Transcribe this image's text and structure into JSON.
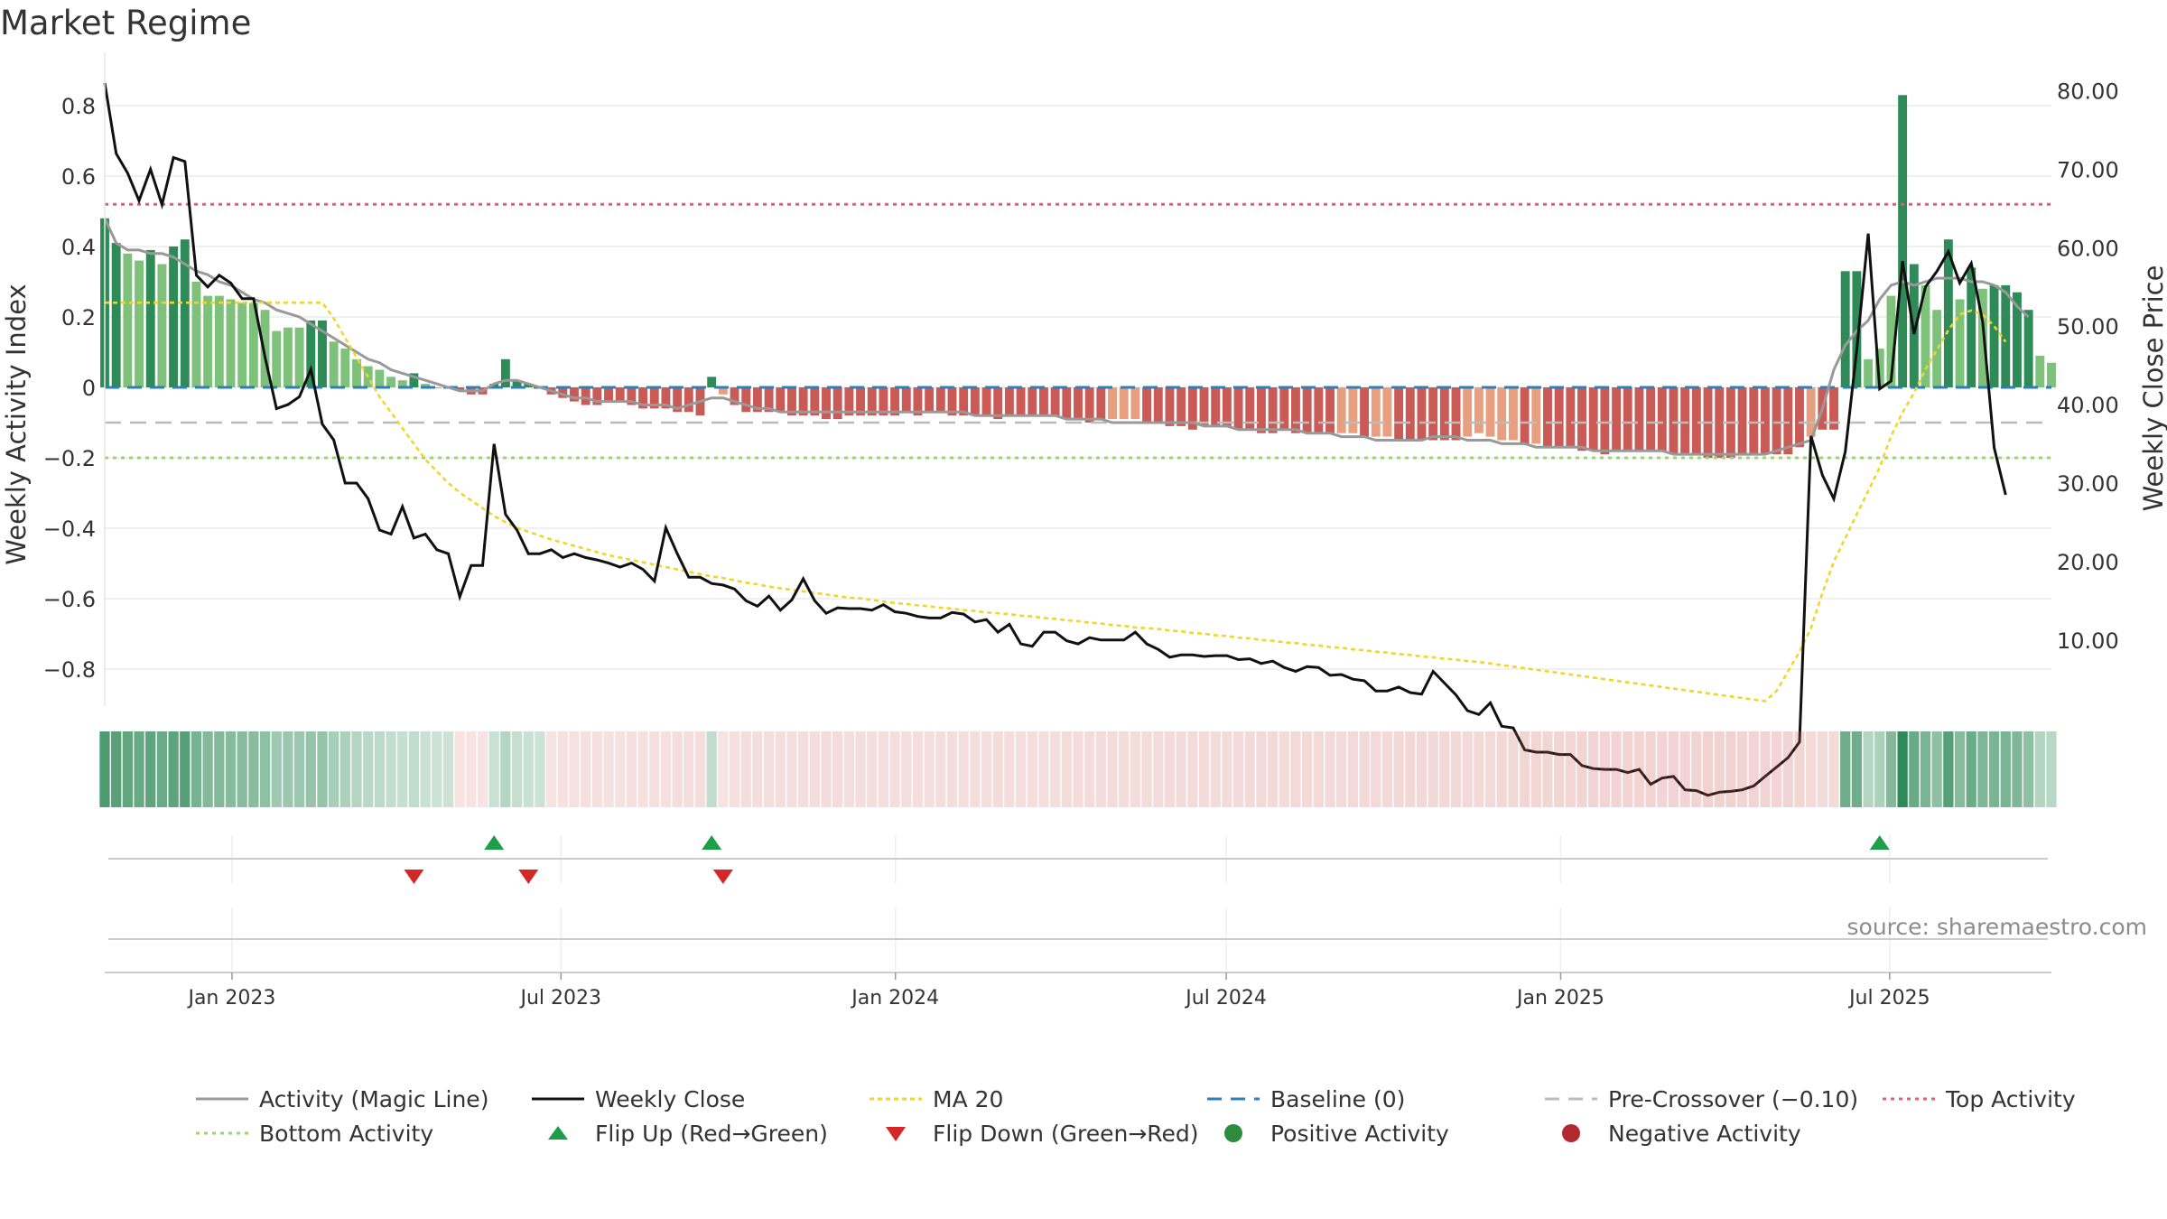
{
  "title": "Market Regime",
  "source": "source: sharemaestro.com",
  "colors": {
    "strong_green": "#2e8a57",
    "light_green": "#7dc17a",
    "strong_red": "#c95a55",
    "light_red": "#e79f80",
    "magic_line": "#999999",
    "close": "#111111",
    "ma20": "#f2d52a",
    "baseline": "#2c7fb8",
    "pre_crossover": "#bbbbbb",
    "top_activity": "#e06070",
    "bottom_activity": "#9ed46e",
    "flip_up": "#1f9e4a",
    "flip_down": "#d62728"
  },
  "legend": [
    {
      "label": "Activity (Magic Line)",
      "icon": "gray-solid-line"
    },
    {
      "label": "Weekly Close",
      "icon": "black-solid-line"
    },
    {
      "label": "MA 20",
      "icon": "yellow-dotted-line"
    },
    {
      "label": "Baseline (0)",
      "icon": "blue-dashed-line"
    },
    {
      "label": "Pre-Crossover (−0.10)",
      "icon": "gray-dashed-line"
    },
    {
      "label": "Top Activity",
      "icon": "red-dotted-line"
    },
    {
      "label": "Bottom Activity",
      "icon": "green-dotted-line"
    },
    {
      "label": "Flip Up (Red→Green)",
      "icon": "green-triangle-up"
    },
    {
      "label": "Flip Down (Green→Red)",
      "icon": "red-triangle-down"
    },
    {
      "label": "Positive Activity",
      "icon": "green-dot"
    },
    {
      "label": "Negative Activity",
      "icon": "red-dot"
    }
  ],
  "chart_data": {
    "type": "bar",
    "y_left_label": "Weekly Activity Index",
    "y_right_label": "Weekly Close Price",
    "y_left_ticks": [
      "0.8",
      "0.6",
      "0.4",
      "0.2",
      "0",
      "−0.2",
      "−0.4",
      "−0.6",
      "−0.8"
    ],
    "y_left_tick_values": [
      0.8,
      0.6,
      0.4,
      0.2,
      0,
      -0.2,
      -0.4,
      -0.6,
      -0.8
    ],
    "y_right_ticks": [
      "80.00",
      "70.00",
      "60.00",
      "50.00",
      "40.00",
      "30.00",
      "20.00",
      "10.00"
    ],
    "y_right_tick_values": [
      80,
      70,
      60,
      50,
      40,
      30,
      20,
      10
    ],
    "x_ticks": [
      "Jan 2023",
      "Jul 2023",
      "Jan 2024",
      "Jul 2024",
      "Jan 2025",
      "Jul 2025"
    ],
    "x_tick_dates": [
      "2023-01-01",
      "2023-07-01",
      "2024-01-01",
      "2024-07-01",
      "2025-01-01",
      "2025-07-01"
    ],
    "x_start": "2022-10-23",
    "x_end": "2025-09-28",
    "ylim_left": [
      -0.9,
      0.9
    ],
    "ylim_right": [
      1.8,
      82.6
    ],
    "reference_lines": {
      "top_activity": 0.52,
      "bottom_activity": -0.2,
      "pre_crossover": -0.1,
      "baseline": 0
    },
    "weekly_activity": [
      0.48,
      0.41,
      0.38,
      0.36,
      0.39,
      0.35,
      0.4,
      0.42,
      0.3,
      0.26,
      0.26,
      0.25,
      0.24,
      0.24,
      0.22,
      0.16,
      0.17,
      0.17,
      0.19,
      0.19,
      0.13,
      0.11,
      0.08,
      0.06,
      0.05,
      0.03,
      0.02,
      0.04,
      0.01,
      0.0,
      0.0,
      -0.01,
      -0.02,
      -0.02,
      0.01,
      0.08,
      0.02,
      0.01,
      0.0,
      -0.02,
      -0.03,
      -0.04,
      -0.05,
      -0.05,
      -0.04,
      -0.04,
      -0.05,
      -0.06,
      -0.06,
      -0.06,
      -0.07,
      -0.07,
      -0.08,
      0.03,
      -0.02,
      -0.05,
      -0.07,
      -0.07,
      -0.07,
      -0.07,
      -0.08,
      -0.08,
      -0.08,
      -0.09,
      -0.09,
      -0.08,
      -0.08,
      -0.08,
      -0.08,
      -0.08,
      -0.07,
      -0.08,
      -0.07,
      -0.07,
      -0.08,
      -0.08,
      -0.08,
      -0.08,
      -0.09,
      -0.08,
      -0.08,
      -0.08,
      -0.08,
      -0.08,
      -0.09,
      -0.09,
      -0.1,
      -0.09,
      -0.09,
      -0.09,
      -0.09,
      -0.1,
      -0.1,
      -0.11,
      -0.11,
      -0.12,
      -0.11,
      -0.11,
      -0.11,
      -0.12,
      -0.12,
      -0.13,
      -0.13,
      -0.12,
      -0.13,
      -0.13,
      -0.13,
      -0.13,
      -0.13,
      -0.13,
      -0.14,
      -0.14,
      -0.14,
      -0.15,
      -0.15,
      -0.15,
      -0.15,
      -0.15,
      -0.15,
      -0.14,
      -0.13,
      -0.14,
      -0.15,
      -0.15,
      -0.16,
      -0.16,
      -0.17,
      -0.17,
      -0.17,
      -0.18,
      -0.18,
      -0.19,
      -0.18,
      -0.18,
      -0.18,
      -0.18,
      -0.18,
      -0.19,
      -0.19,
      -0.19,
      -0.2,
      -0.2,
      -0.2,
      -0.19,
      -0.19,
      -0.19,
      -0.19,
      -0.19,
      -0.17,
      -0.14,
      -0.12,
      -0.12,
      0.33,
      0.33,
      0.08,
      0.11,
      0.26,
      0.83,
      0.35,
      0.29,
      0.22,
      0.42,
      0.25,
      0.34,
      0.28,
      0.29,
      0.29,
      0.27,
      0.22,
      0.09,
      0.07
    ],
    "magic_line": [
      0.48,
      0.41,
      0.39,
      0.39,
      0.38,
      0.38,
      0.37,
      0.35,
      0.33,
      0.32,
      0.3,
      0.29,
      0.27,
      0.25,
      0.24,
      0.22,
      0.21,
      0.2,
      0.18,
      0.16,
      0.14,
      0.12,
      0.1,
      0.08,
      0.07,
      0.05,
      0.04,
      0.03,
      0.02,
      0.01,
      0.0,
      -0.01,
      -0.01,
      -0.01,
      0.01,
      0.02,
      0.02,
      0.01,
      0.0,
      -0.01,
      -0.02,
      -0.03,
      -0.03,
      -0.04,
      -0.04,
      -0.04,
      -0.04,
      -0.05,
      -0.05,
      -0.05,
      -0.06,
      -0.05,
      -0.04,
      -0.03,
      -0.03,
      -0.04,
      -0.05,
      -0.06,
      -0.06,
      -0.07,
      -0.07,
      -0.07,
      -0.07,
      -0.07,
      -0.07,
      -0.07,
      -0.07,
      -0.07,
      -0.07,
      -0.07,
      -0.07,
      -0.07,
      -0.07,
      -0.07,
      -0.07,
      -0.07,
      -0.08,
      -0.08,
      -0.08,
      -0.08,
      -0.08,
      -0.08,
      -0.08,
      -0.08,
      -0.09,
      -0.09,
      -0.09,
      -0.09,
      -0.1,
      -0.1,
      -0.1,
      -0.1,
      -0.1,
      -0.1,
      -0.1,
      -0.1,
      -0.11,
      -0.11,
      -0.11,
      -0.12,
      -0.12,
      -0.12,
      -0.12,
      -0.12,
      -0.12,
      -0.13,
      -0.13,
      -0.13,
      -0.14,
      -0.14,
      -0.14,
      -0.15,
      -0.15,
      -0.15,
      -0.15,
      -0.15,
      -0.14,
      -0.14,
      -0.14,
      -0.15,
      -0.15,
      -0.15,
      -0.16,
      -0.16,
      -0.16,
      -0.17,
      -0.17,
      -0.17,
      -0.17,
      -0.17,
      -0.18,
      -0.18,
      -0.18,
      -0.18,
      -0.18,
      -0.18,
      -0.18,
      -0.19,
      -0.19,
      -0.19,
      -0.19,
      -0.19,
      -0.19,
      -0.19,
      -0.19,
      -0.19,
      -0.18,
      -0.17,
      -0.16,
      -0.15,
      -0.06,
      0.05,
      0.12,
      0.16,
      0.19,
      0.25,
      0.29,
      0.3,
      0.29,
      0.3,
      0.31,
      0.31,
      0.31,
      0.3,
      0.3,
      0.29,
      0.27,
      0.23,
      0.2
    ],
    "weekly_close": [
      81.0,
      72.0,
      69.5,
      66.0,
      70.0,
      65.5,
      71.5,
      71.0,
      56.5,
      55.0,
      56.5,
      55.5,
      53.5,
      53.5,
      46.0,
      39.5,
      40.0,
      41.0,
      44.5,
      37.5,
      35.5,
      30.0,
      30.0,
      28.0,
      24.0,
      23.5,
      27.0,
      23.0,
      23.5,
      21.5,
      21.0,
      15.5,
      19.5,
      19.5,
      35.0,
      26.0,
      24.0,
      21.0,
      21.0,
      21.5,
      20.5,
      21.0,
      20.5,
      20.2,
      19.8,
      19.3,
      19.8,
      19.0,
      17.5,
      24.3,
      21.0,
      18.0,
      18.0,
      17.2,
      17.0,
      16.5,
      15.0,
      14.3,
      15.6,
      13.8,
      15.1,
      17.8,
      15.0,
      13.4,
      14.1,
      14.0,
      14.0,
      13.8,
      14.5,
      13.6,
      13.4,
      13.0,
      12.8,
      12.8,
      13.5,
      13.3,
      12.3,
      12.6,
      11.0,
      12.0,
      9.5,
      9.2,
      11.0,
      11.0,
      9.9,
      9.5,
      10.3,
      10.0,
      10.0,
      10.0,
      11.0,
      9.5,
      8.8,
      7.8,
      8.1,
      8.1,
      7.9,
      8.0,
      8.0,
      7.5,
      7.6,
      7.0,
      7.3,
      6.5,
      6.0,
      6.6,
      6.5,
      5.5,
      5.6,
      5.0,
      4.8,
      3.5,
      3.5,
      4.0,
      3.3,
      3.1,
      6.0,
      4.5,
      3.0,
      1.0,
      0.5,
      2.0,
      -1.0,
      -1.2,
      -4.0,
      -4.3,
      -4.3,
      -4.6,
      -4.6,
      -6.0,
      -6.4,
      -6.5,
      -6.5,
      -6.9,
      -6.5,
      -8.4,
      -7.6,
      -7.4,
      -9.1,
      -9.2,
      -9.8,
      -9.4,
      -9.3,
      -9.1,
      -8.6,
      -7.4,
      -6.2,
      -5.0,
      -3.0,
      36.0,
      31.0,
      28.0,
      34.0,
      47.0,
      61.8,
      42.0,
      43.0,
      58.3,
      49.0,
      55.0,
      57.0,
      59.5,
      55.5,
      58.0,
      50.5,
      34.5,
      28.5
    ],
    "ma20": [
      53.0,
      53.0,
      53.0,
      53.0,
      53.0,
      53.0,
      53.0,
      53.0,
      53.0,
      53.0,
      53.0,
      53.0,
      53.0,
      53.0,
      53.0,
      53.0,
      53.0,
      53.0,
      53.0,
      53.0,
      51.0,
      48.5,
      46.0,
      43.5,
      41.0,
      39.0,
      37.0,
      35.0,
      33.0,
      31.5,
      30.0,
      28.8,
      27.8,
      26.8,
      25.8,
      25.0,
      24.3,
      23.8,
      23.3,
      22.8,
      22.4,
      22.0,
      21.6,
      21.2,
      20.8,
      20.5,
      20.2,
      19.9,
      19.6,
      19.3,
      19.0,
      18.7,
      18.4,
      18.1,
      17.9,
      17.6,
      17.3,
      17.1,
      16.8,
      16.6,
      16.4,
      16.2,
      16.0,
      15.8,
      15.6,
      15.4,
      15.3,
      15.1,
      14.9,
      14.7,
      14.6,
      14.4,
      14.3,
      14.1,
      14.0,
      13.8,
      13.7,
      13.5,
      13.4,
      13.3,
      13.1,
      13.0,
      12.8,
      12.7,
      12.5,
      12.4,
      12.2,
      12.1,
      11.9,
      11.8,
      11.6,
      11.5,
      11.4,
      11.2,
      11.1,
      10.9,
      10.8,
      10.6,
      10.5,
      10.3,
      10.2,
      10.0,
      9.9,
      9.7,
      9.6,
      9.4,
      9.3,
      9.1,
      9.0,
      8.8,
      8.7,
      8.5,
      8.4,
      8.2,
      8.1,
      7.9,
      7.8,
      7.6,
      7.5,
      7.3,
      7.2,
      7.0,
      6.8,
      6.6,
      6.4,
      6.2,
      6.0,
      5.8,
      5.6,
      5.4,
      5.2,
      5.0,
      4.8,
      4.6,
      4.4,
      4.2,
      4.0,
      3.8,
      3.6,
      3.4,
      3.2,
      3.0,
      2.8,
      2.6,
      2.4,
      2.2,
      3.5,
      6.0,
      8.5,
      11.5,
      16.0,
      20.0,
      23.0,
      26.0,
      29.0,
      32.0,
      36.0,
      39.0,
      41.5,
      44.5,
      47.0,
      49.5,
      51.5,
      52.0,
      51.5,
      50.0,
      48.0
    ],
    "flip_up_weeks": [
      34,
      53,
      155
    ],
    "flip_down_weeks": [
      27,
      37,
      54
    ]
  }
}
